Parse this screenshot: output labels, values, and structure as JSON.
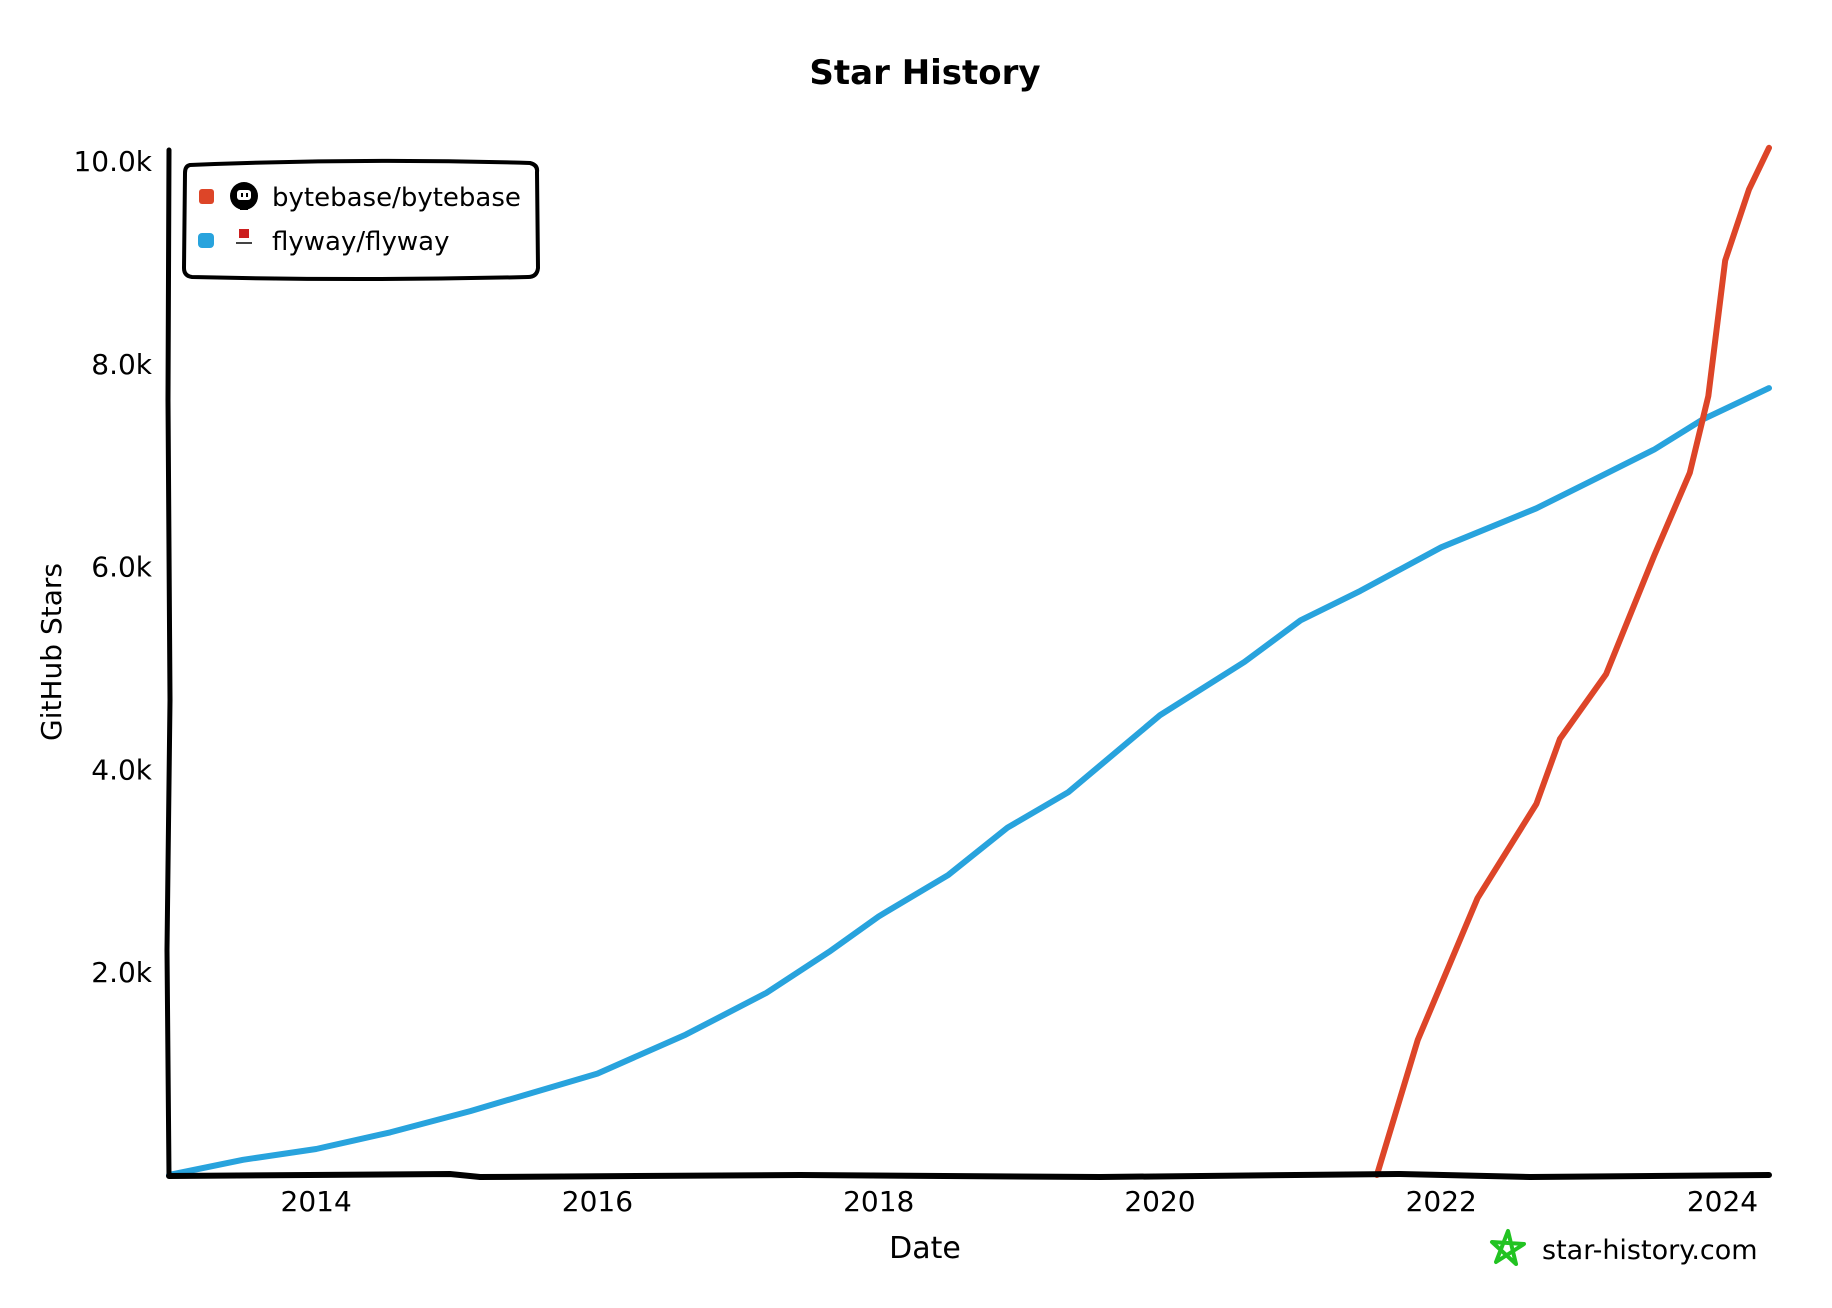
{
  "chart_data": {
    "type": "line",
    "title": "Star History",
    "xlabel": "Date",
    "ylabel": "GitHub Stars",
    "xlim": [
      "2012-12-15",
      "2024-05-01"
    ],
    "ylim": [
      0,
      10000
    ],
    "x_ticks": [
      "2014",
      "2016",
      "2018",
      "2020",
      "2022",
      "2024"
    ],
    "y_ticks": [
      {
        "value": 2000,
        "label": "2.0k"
      },
      {
        "value": 4000,
        "label": "4.0k"
      },
      {
        "value": 6000,
        "label": "6.0k"
      },
      {
        "value": 8000,
        "label": "8.0k"
      },
      {
        "value": 10000,
        "label": "10.0k"
      }
    ],
    "grid": false,
    "legend_placement": "top-left",
    "series": [
      {
        "name": "bytebase/bytebase",
        "color": "#dd4528",
        "icon": "github-icon",
        "points": [
          [
            "2021-07-18",
            0
          ],
          [
            "2021-11-01",
            1330
          ],
          [
            "2022-04-05",
            2730
          ],
          [
            "2022-09-05",
            3660
          ],
          [
            "2022-11-05",
            4300
          ],
          [
            "2023-03-05",
            4940
          ],
          [
            "2023-07-08",
            6110
          ],
          [
            "2023-10-08",
            6925
          ],
          [
            "2023-11-25",
            7680
          ],
          [
            "2024-01-08",
            9020
          ],
          [
            "2024-03-10",
            9720
          ],
          [
            "2024-05-01",
            10130
          ]
        ]
      },
      {
        "name": "flyway/flyway",
        "color": "#28a3dd",
        "icon": "flyway-logo-icon",
        "points": [
          [
            "2012-12-15",
            0
          ],
          [
            "2013-06-25",
            150
          ],
          [
            "2014-01-01",
            256
          ],
          [
            "2014-07-12",
            420
          ],
          [
            "2015-02-05",
            630
          ],
          [
            "2016-01-01",
            1000
          ],
          [
            "2016-08-18",
            1385
          ],
          [
            "2017-03-15",
            1795
          ],
          [
            "2017-08-25",
            2200
          ],
          [
            "2018-01-01",
            2550
          ],
          [
            "2018-07-01",
            2960
          ],
          [
            "2018-12-01",
            3425
          ],
          [
            "2019-05-08",
            3775
          ],
          [
            "2020-01-01",
            4535
          ],
          [
            "2020-08-08",
            5060
          ],
          [
            "2021-01-01",
            5470
          ],
          [
            "2021-06-05",
            5760
          ],
          [
            "2022-01-01",
            6190
          ],
          [
            "2022-09-05",
            6575
          ],
          [
            "2023-02-05",
            6865
          ],
          [
            "2023-07-08",
            7155
          ],
          [
            "2023-11-10",
            7450
          ],
          [
            "2024-05-01",
            7760
          ]
        ]
      }
    ],
    "watermark": "star-history.com"
  }
}
